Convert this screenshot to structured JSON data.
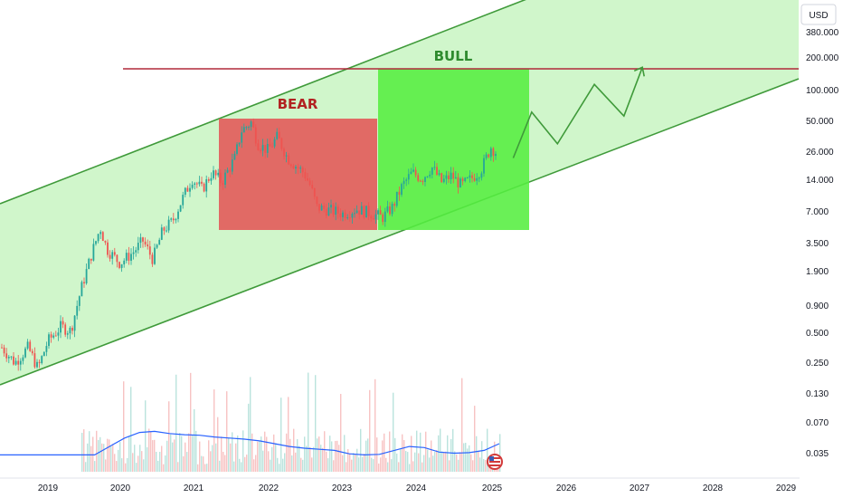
{
  "chart_data": {
    "type": "candlestick",
    "currency_label": "USD",
    "y_scale": "log",
    "x_ticks": [
      "2019",
      "2020",
      "2021",
      "2022",
      "2023",
      "2024",
      "2025",
      "2026",
      "2027",
      "2028",
      "2029"
    ],
    "y_ticks": [
      "380.000",
      "200.000",
      "100.000",
      "50.000",
      "26.000",
      "14.000",
      "7.000",
      "3.500",
      "1.900",
      "0.900",
      "0.500",
      "0.250",
      "0.130",
      "0.070",
      "0.035"
    ],
    "annotations": {
      "bear": {
        "label": "BEAR",
        "color": "#b22222"
      },
      "bull": {
        "label": "BULL",
        "color": "#2e8b2e"
      }
    },
    "resistance_level": 160,
    "price_path": [
      [
        "2018.4",
        0.35
      ],
      [
        "2018.6",
        0.25
      ],
      [
        "2018.8",
        0.35
      ],
      [
        "2018.95",
        0.22
      ],
      [
        "2019.1",
        0.4
      ],
      [
        "2019.3",
        0.55
      ],
      [
        "2019.45",
        0.5
      ],
      [
        "2019.6",
        1.2
      ],
      [
        "2019.75",
        2.5
      ],
      [
        "2019.9",
        4.8
      ],
      [
        "2020.0",
        3.0
      ],
      [
        "2020.2",
        2.2
      ],
      [
        "2020.4",
        2.8
      ],
      [
        "2020.55",
        3.6
      ],
      [
        "2020.7",
        2.4
      ],
      [
        "2020.85",
        4.5
      ],
      [
        "2021.0",
        5.5
      ],
      [
        "2021.15",
        9.0
      ],
      [
        "2021.3",
        14
      ],
      [
        "2021.45",
        11
      ],
      [
        "2021.6",
        16
      ],
      [
        "2021.75",
        13
      ],
      [
        "2021.95",
        22
      ],
      [
        "2022.05",
        40
      ],
      [
        "2022.2",
        48
      ],
      [
        "2022.3",
        30
      ],
      [
        "2022.45",
        26
      ],
      [
        "2022.6",
        35
      ],
      [
        "2022.75",
        22
      ],
      [
        "2022.9",
        18
      ],
      [
        "2023.0",
        16
      ],
      [
        "2023.1",
        12
      ],
      [
        "2023.2",
        7.5
      ],
      [
        "2023.4",
        7.0
      ],
      [
        "2023.6",
        6.5
      ],
      [
        "2023.8",
        7.2
      ],
      [
        "2024.0",
        6.6
      ],
      [
        "2024.2",
        6.0
      ],
      [
        "2024.35",
        7.5
      ],
      [
        "2024.5",
        12
      ],
      [
        "2024.65",
        16
      ],
      [
        "2024.8",
        14
      ],
      [
        "2024.95",
        18
      ],
      [
        "2025.1",
        13
      ],
      [
        "2025.25",
        15
      ],
      [
        "2025.4",
        12
      ],
      [
        "2025.55",
        14
      ],
      [
        "2025.7",
        17
      ],
      [
        "2025.85",
        28
      ],
      [
        "2025.95",
        24
      ]
    ],
    "projection_path": [
      [
        "2026.1",
        22
      ],
      [
        "2026.35",
        60
      ],
      [
        "2026.7",
        30
      ],
      [
        "2027.2",
        110
      ],
      [
        "2027.6",
        55
      ],
      [
        "2027.85",
        160
      ]
    ],
    "volume_ma_values": [
      0.3,
      0.3,
      0.3,
      0.45,
      0.6,
      0.7,
      0.72,
      0.68,
      0.66,
      0.65,
      0.62,
      0.6,
      0.58,
      0.55,
      0.5,
      0.45,
      0.42,
      0.4,
      0.38,
      0.32,
      0.3,
      0.31,
      0.38,
      0.45,
      0.43,
      0.35,
      0.33,
      0.34,
      0.38,
      0.5
    ]
  }
}
